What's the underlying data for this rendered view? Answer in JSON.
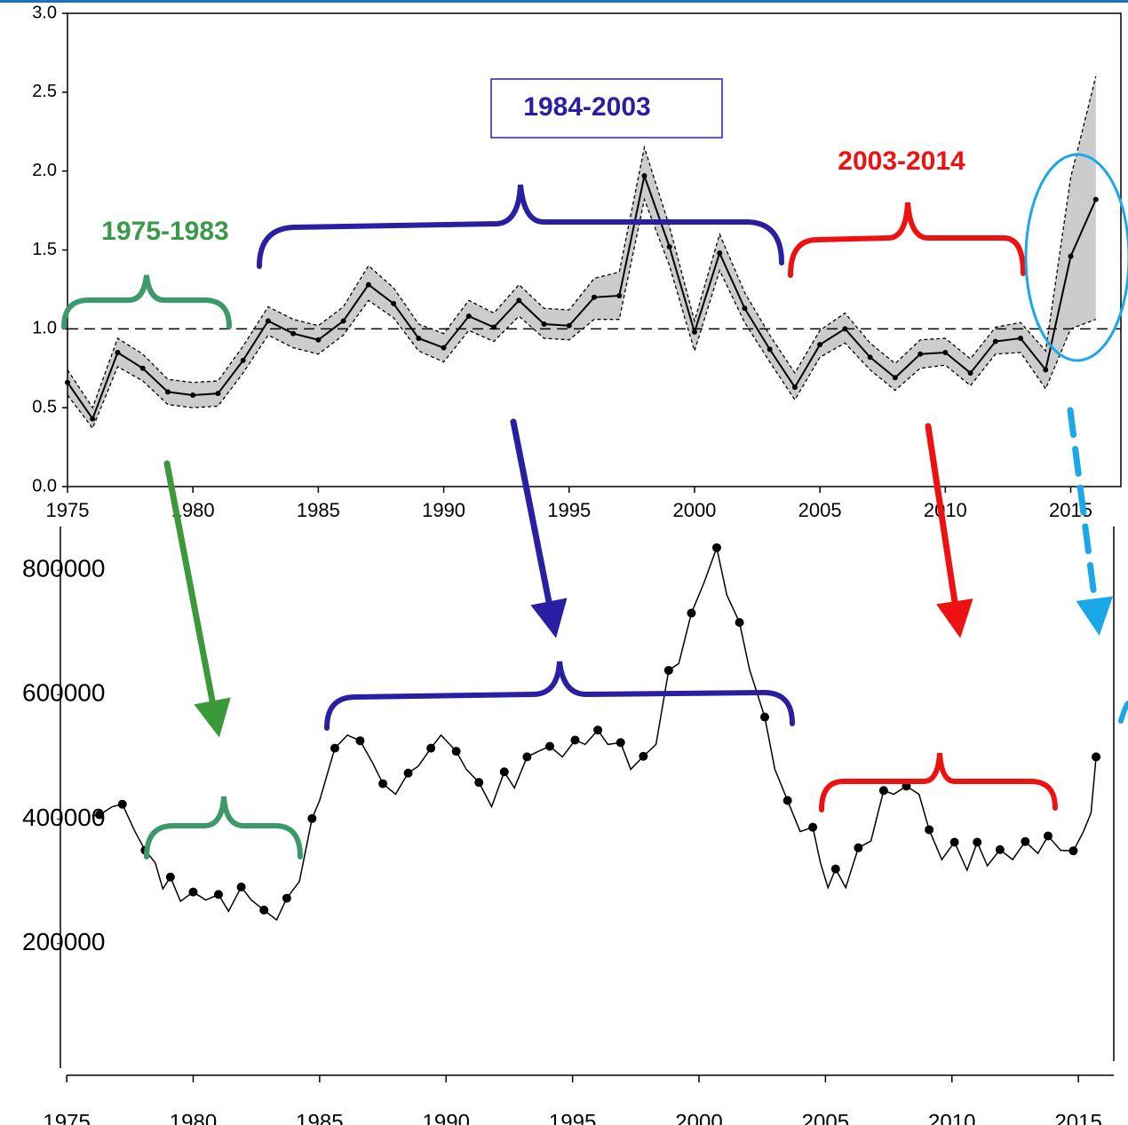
{
  "chart_data": [
    {
      "type": "line",
      "x": [
        1975,
        1976,
        1977,
        1978,
        1979,
        1980,
        1981,
        1982,
        1983,
        1984,
        1985,
        1986,
        1987,
        1988,
        1989,
        1990,
        1991,
        1992,
        1993,
        1994,
        1995,
        1996,
        1997,
        1998,
        1999,
        2000,
        2001,
        2002,
        2003,
        2004,
        2005,
        2006,
        2007,
        2008,
        2009,
        2010,
        2011,
        2012,
        2013,
        2014,
        2015,
        2016
      ],
      "series": [
        {
          "color": "#000000",
          "values": [
            0.66,
            0.43,
            0.85,
            0.75,
            0.6,
            0.58,
            0.59,
            0.8,
            1.05,
            0.97,
            0.93,
            1.05,
            1.28,
            1.16,
            0.94,
            0.88,
            1.08,
            1.01,
            1.18,
            1.03,
            1.02,
            1.2,
            1.21,
            1.97,
            1.52,
            0.98,
            1.48,
            1.13,
            0.87,
            0.63,
            0.9,
            1.0,
            0.82,
            0.69,
            0.84,
            0.85,
            0.72,
            0.92,
            0.94,
            0.74,
            1.46,
            1.82
          ]
        }
      ],
      "lower": [
        0.58,
        0.37,
        0.76,
        0.67,
        0.52,
        0.5,
        0.51,
        0.72,
        0.96,
        0.88,
        0.84,
        0.96,
        1.18,
        1.07,
        0.86,
        0.79,
        0.99,
        0.92,
        1.08,
        0.94,
        0.93,
        1.06,
        1.06,
        1.82,
        1.4,
        0.86,
        1.37,
        1.04,
        0.79,
        0.55,
        0.82,
        0.91,
        0.74,
        0.61,
        0.75,
        0.77,
        0.64,
        0.84,
        0.85,
        0.62,
        1.0,
        1.06
      ],
      "upper": [
        0.74,
        0.5,
        0.94,
        0.84,
        0.68,
        0.66,
        0.67,
        0.89,
        1.14,
        1.06,
        1.02,
        1.14,
        1.4,
        1.26,
        1.03,
        0.97,
        1.18,
        1.1,
        1.28,
        1.13,
        1.12,
        1.32,
        1.36,
        2.15,
        1.65,
        1.05,
        1.6,
        1.23,
        0.96,
        0.72,
        0.99,
        1.1,
        0.91,
        0.78,
        0.93,
        0.94,
        0.81,
        1.01,
        1.04,
        0.86,
        1.96,
        2.6
      ],
      "band_color": "#cccccc",
      "reference_line": 1,
      "xlim": [
        1975,
        2017
      ],
      "ylim": [
        0,
        3
      ],
      "xticks": [
        1975,
        1980,
        1985,
        1990,
        1995,
        2000,
        2005,
        2010,
        2015
      ],
      "yticks": [
        {
          "value": 0,
          "label": "0.0"
        },
        0.5,
        {
          "value": 1,
          "label": "1.0"
        },
        1.5,
        {
          "value": 2,
          "label": "2.0"
        },
        2.5,
        {
          "value": 3,
          "label": "3.0"
        }
      ],
      "annotations": [
        {
          "text": "1975-1983",
          "color": "#3a9a4a"
        },
        {
          "text": "1984-2003",
          "color": "#2a1fa3"
        },
        {
          "text": "2003-2014",
          "color": "#ee1111"
        }
      ]
    },
    {
      "type": "line",
      "series": [
        {
          "color": "#000000",
          "x": [
            1976.0,
            1976.3,
            1976.8,
            1977.2,
            1977.7,
            1978.1,
            1978.5,
            1978.8,
            1979.1,
            1979.5,
            1980.0,
            1980.5,
            1981.0,
            1981.4,
            1981.9,
            1982.3,
            1982.8,
            1983.3,
            1983.7,
            1984.2,
            1984.7,
            1985.0,
            1985.6,
            1986.1,
            1986.6,
            1987.1,
            1987.5,
            1988.0,
            1988.5,
            1988.9,
            1989.4,
            1989.8,
            1990.4,
            1990.8,
            1991.3,
            1991.8,
            1992.3,
            1992.7,
            1993.2,
            1993.7,
            1994.1,
            1994.6,
            1995.1,
            1995.5,
            1996.0,
            1996.4,
            1996.9,
            1997.3,
            1997.8,
            1998.3,
            1998.8,
            1999.2,
            1999.7,
            2000.2,
            2000.7,
            2001.1,
            2001.6,
            2002.0,
            2002.6,
            2003.0,
            2003.5,
            2004.0,
            2004.5,
            2004.8,
            2005.1,
            2005.4,
            2005.8,
            2006.3,
            2006.8,
            2007.3,
            2007.7,
            2008.2,
            2008.7,
            2009.1,
            2009.6,
            2010.1,
            2010.6,
            2011.0,
            2011.4,
            2011.9,
            2012.4,
            2012.9,
            2013.4,
            2013.8,
            2014.3,
            2014.8,
            2015.2,
            2015.5,
            2015.7
          ],
          "values": [
            405000,
            407000,
            420000,
            424000,
            380000,
            350000,
            330000,
            288000,
            307000,
            268000,
            283000,
            270000,
            279000,
            252000,
            291000,
            270000,
            254000,
            238000,
            273000,
            300000,
            401000,
            430000,
            514000,
            535000,
            526000,
            490000,
            457000,
            440000,
            474000,
            485000,
            514000,
            535000,
            509000,
            480000,
            459000,
            420000,
            476000,
            450000,
            500000,
            510000,
            517000,
            500000,
            527000,
            520000,
            543000,
            520000,
            523000,
            480000,
            501000,
            520000,
            639000,
            650000,
            731000,
            780000,
            836000,
            760000,
            716000,
            640000,
            564000,
            480000,
            430000,
            380000,
            387000,
            330000,
            290000,
            320000,
            290000,
            354000,
            365000,
            446000,
            440000,
            453000,
            440000,
            383000,
            335000,
            363000,
            318000,
            363000,
            325000,
            351000,
            335000,
            364000,
            345000,
            373000,
            350000,
            349000,
            380000,
            410000,
            500000
          ]
        },
        {
          "color": "#000000",
          "style": "points",
          "x": [
            1976.3,
            1977.2,
            1978.1,
            1979.1,
            1980.0,
            1981.0,
            1981.9,
            1982.8,
            1983.7,
            1984.7,
            1985.6,
            1986.6,
            1987.5,
            1988.5,
            1989.4,
            1990.4,
            1991.3,
            1992.3,
            1993.2,
            1994.1,
            1995.1,
            1996.0,
            1996.9,
            1997.8,
            1998.8,
            1999.7,
            2000.7,
            2001.6,
            2002.6,
            2003.5,
            2004.5,
            2005.4,
            2006.3,
            2007.3,
            2008.2,
            2009.1,
            2010.1,
            2011.0,
            2011.9,
            2012.9,
            2013.8,
            2014.8,
            2015.7
          ],
          "values": [
            407000,
            424000,
            350000,
            307000,
            283000,
            279000,
            291000,
            254000,
            273000,
            401000,
            514000,
            526000,
            457000,
            474000,
            514000,
            509000,
            459000,
            476000,
            500000,
            517000,
            527000,
            543000,
            523000,
            501000,
            639000,
            731000,
            836000,
            716000,
            564000,
            430000,
            387000,
            320000,
            354000,
            446000,
            453000,
            383000,
            363000,
            363000,
            351000,
            364000,
            373000,
            349000,
            500000
          ]
        }
      ],
      "xlim": [
        1974.75,
        2016.4
      ],
      "ylim": [
        0,
        870000
      ],
      "xticks": [
        1975,
        1980,
        1985,
        1990,
        1995,
        2000,
        2005,
        2010,
        2015
      ],
      "yticks": [
        200000,
        400000,
        600000,
        800000
      ]
    }
  ]
}
